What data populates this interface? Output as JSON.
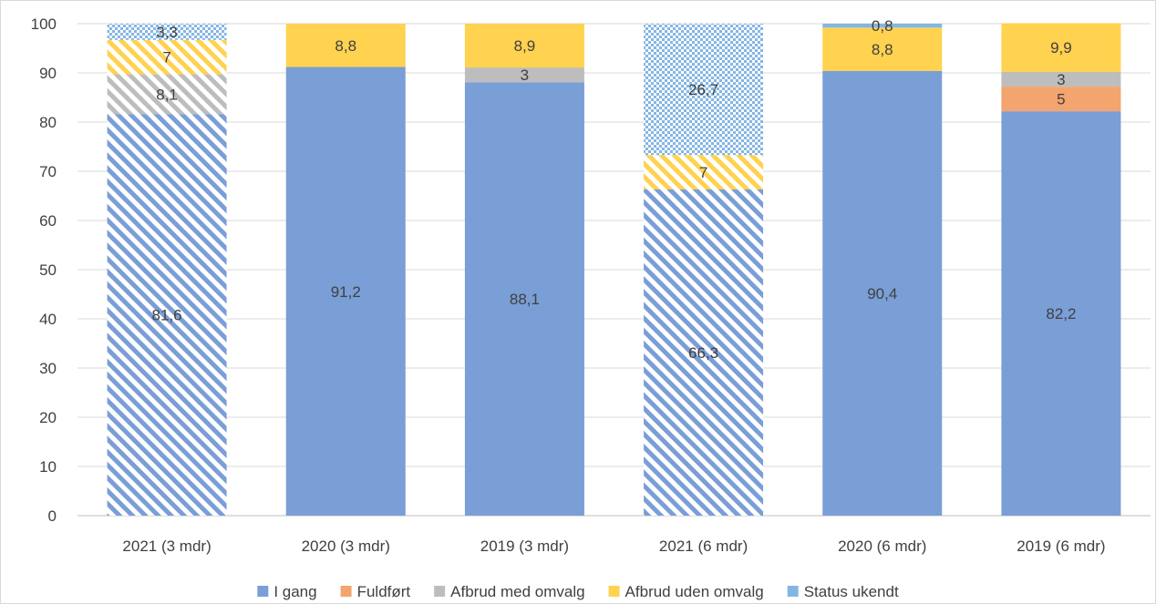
{
  "chart_data": {
    "type": "bar",
    "stacked": true,
    "title": "",
    "xlabel": "",
    "ylabel": "",
    "ylim": [
      0,
      100
    ],
    "yticks": [
      "0",
      "10",
      "20",
      "30",
      "40",
      "50",
      "60",
      "70",
      "80",
      "90",
      "100"
    ],
    "grid": "horizontal",
    "legend_position": "bottom",
    "categories": [
      "2021 (3 mdr)",
      "2020 (3 mdr)",
      "2019 (3 mdr)",
      "2021 (6 mdr)",
      "2020 (6 mdr)",
      "2019 (6 mdr)"
    ],
    "hatched_categories": [
      "2021 (3 mdr)",
      "2021 (6 mdr)"
    ],
    "series": [
      {
        "name": "I gang",
        "color": "#7A9ED6",
        "values": [
          81.6,
          91.2,
          88.1,
          66.3,
          90.4,
          82.2
        ],
        "labels": [
          "81,6",
          "91,2",
          "88,1",
          "66,3",
          "90,4",
          "82,2"
        ]
      },
      {
        "name": "Fuldført",
        "color": "#F4A46E",
        "values": [
          0,
          0,
          0,
          0,
          0,
          5
        ],
        "labels": [
          "",
          "",
          "",
          "",
          "",
          "5"
        ]
      },
      {
        "name": "Afbrud med omvalg",
        "color": "#BDBDBD",
        "values": [
          8.1,
          0,
          3,
          0,
          0,
          3
        ],
        "labels": [
          "8,1",
          "",
          "3",
          "",
          "",
          "3"
        ]
      },
      {
        "name": "Afbrud uden omvalg",
        "color": "#FFD24F",
        "values": [
          7,
          8.8,
          8.9,
          7,
          8.8,
          9.9
        ],
        "labels": [
          "7",
          "8,8",
          "8,9",
          "7",
          "8,8",
          "9,9"
        ]
      },
      {
        "name": "Status ukendt",
        "color": "#84B6E4",
        "values": [
          3.3,
          0,
          0,
          26.7,
          0.8,
          0
        ],
        "labels": [
          "3,3",
          "",
          "",
          "26,7",
          "0,8",
          ""
        ]
      }
    ]
  }
}
